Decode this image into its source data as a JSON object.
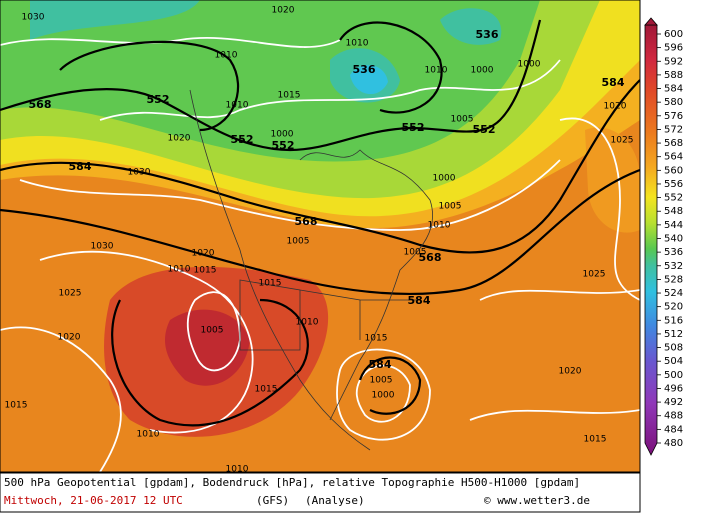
{
  "map": {
    "bold_labels": [
      568,
      552,
      552,
      552,
      536,
      536,
      552,
      552,
      584,
      584,
      568,
      568,
      584,
      584
    ],
    "isobar_labels": [
      1030,
      1010,
      1020,
      1015,
      1010,
      1010,
      1000,
      1000,
      1020,
      1025,
      1020,
      1010,
      1000,
      1005,
      1030,
      1000,
      1005,
      1010,
      1005,
      1030,
      1020,
      1010,
      1015,
      1015,
      1025,
      1020,
      1010,
      1005,
      1015,
      1025,
      1015,
      1005,
      1000,
      1020,
      1015,
      1010,
      1015,
      1010,
      1005
    ],
    "colorbar_ticks": [
      600,
      596,
      592,
      588,
      584,
      580,
      576,
      572,
      568,
      564,
      560,
      556,
      552,
      548,
      544,
      540,
      536,
      532,
      528,
      524,
      520,
      516,
      512,
      508,
      504,
      500,
      496,
      492,
      488,
      484,
      480
    ]
  },
  "footer": {
    "line1": "500 hPa Geopotential [gpdam], Bodendruck [hPa], relative Topographie H500-H1000 [gpdam]",
    "date": "Mittwoch, 21-06-2017  12 UTC",
    "model": "(GFS)",
    "run": "(Analyse)",
    "credit": "© www.wetter3.de"
  }
}
